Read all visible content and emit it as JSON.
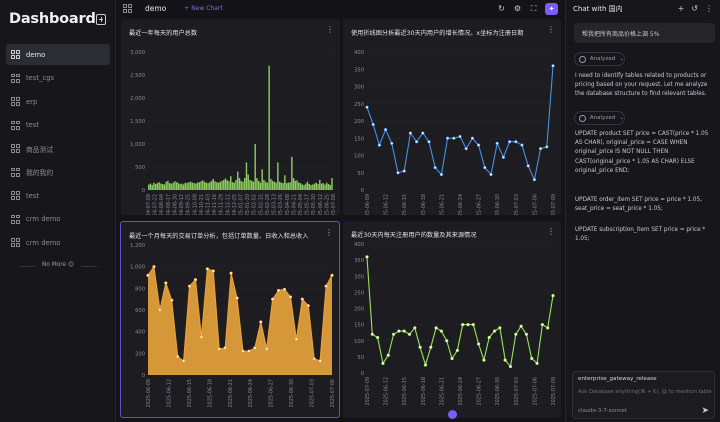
{
  "sidebar": {
    "title": "Dashboard",
    "items": [
      {
        "label": "demo",
        "active": true
      },
      {
        "label": "test_cgs"
      },
      {
        "label": "erp"
      },
      {
        "label": "test"
      },
      {
        "label": "商品测试"
      },
      {
        "label": "我的我的"
      },
      {
        "label": "test"
      },
      {
        "label": "crm demo"
      },
      {
        "label": "crm demo"
      }
    ],
    "no_more": "No More 😊"
  },
  "toolbar": {
    "title": "demo",
    "new_chart_label": "New Chart",
    "icons": [
      "refresh-icon",
      "settings-icon",
      "fullscreen-icon",
      "ai-assistant-icon"
    ]
  },
  "charts": [
    {
      "title": "最近一年每天的用户总数",
      "chart_data": {
        "type": "bar",
        "y_ticks": [
          0,
          500,
          1000,
          1500,
          2000,
          2500,
          3000
        ],
        "ylim": [
          0,
          3000
        ],
        "x_tick_labels": [
          "2024-07-09",
          "2024-07-22",
          "2024-08-04",
          "2024-08-17",
          "2024-08-30",
          "2024-09-12",
          "2024-09-25",
          "2024-10-08",
          "2024-10-21",
          "2024-11-03",
          "2024-11-16",
          "2024-11-29",
          "2024-12-12",
          "2024-12-25",
          "2025-01-07",
          "2025-01-20",
          "2025-02-02",
          "2025-02-15",
          "2025-02-28",
          "2025-03-13",
          "2025-03-26",
          "2025-04-08",
          "2025-04-21",
          "2025-05-04",
          "2025-05-17",
          "2025-05-30",
          "2025-06-12",
          "2025-06-25",
          "2025-07-08"
        ],
        "values": [
          120,
          140,
          110,
          160,
          130,
          150,
          170,
          140,
          130,
          120,
          180,
          200,
          150,
          140,
          160,
          190,
          170,
          150,
          130,
          140,
          120,
          160,
          150,
          170,
          180,
          160,
          150,
          140,
          160,
          170,
          190,
          210,
          180,
          160,
          150,
          170,
          200,
          240,
          190,
          170,
          160,
          180,
          200,
          220,
          250,
          210,
          190,
          300,
          170,
          160,
          220,
          400,
          260,
          200,
          180,
          260,
          600,
          340,
          220,
          200,
          180,
          1000,
          260,
          200,
          160,
          450,
          220,
          180,
          160,
          2700,
          240,
          200,
          180,
          160,
          600,
          180,
          160,
          150,
          320,
          150,
          160,
          170,
          720,
          260,
          200,
          210,
          160,
          150,
          120,
          110,
          140,
          180,
          130,
          110,
          120,
          140,
          160,
          130,
          220,
          140,
          150,
          120,
          160,
          130,
          110,
          260
        ],
        "color": "#8dc95e"
      }
    },
    {
      "title": "使用折线图分析最近30天内用户的增长情况。x坐标为注册日期",
      "chart_data": {
        "type": "line",
        "y_ticks": [
          0,
          50,
          100,
          150,
          200,
          250,
          300,
          350,
          400
        ],
        "ylim": [
          0,
          400
        ],
        "x_tick_labels": [
          "2025-06-09",
          "2025-06-12",
          "2025-06-15",
          "2025-06-18",
          "2025-06-21",
          "2025-06-24",
          "2025-06-27",
          "2025-06-30",
          "2025-07-03",
          "2025-07-06",
          "2025-07-09"
        ],
        "values": [
          240,
          190,
          130,
          175,
          135,
          50,
          55,
          165,
          140,
          165,
          140,
          65,
          45,
          150,
          150,
          155,
          120,
          150,
          130,
          65,
          45,
          135,
          95,
          140,
          140,
          130,
          70,
          30,
          120,
          125,
          360
        ],
        "color": "#4a90e2"
      }
    },
    {
      "title": "最近一个月每天的交易订单分析，包括订单数量、日收入和总收入",
      "chart_data": {
        "type": "area",
        "y_ticks": [
          0,
          200,
          400,
          600,
          800,
          1000,
          1200
        ],
        "ylim": [
          0,
          1200
        ],
        "x_tick_labels": [
          "2025-06-09",
          "2025-06-12",
          "2025-06-15",
          "2025-06-18",
          "2025-06-21",
          "2025-06-24",
          "2025-06-27",
          "2025-06-30",
          "2025-07-03",
          "2025-07-06"
        ],
        "values": [
          920,
          1000,
          600,
          850,
          690,
          170,
          130,
          820,
          880,
          350,
          980,
          960,
          240,
          250,
          940,
          710,
          220,
          220,
          250,
          490,
          240,
          700,
          780,
          790,
          720,
          330,
          700,
          640,
          150,
          130,
          820,
          920
        ],
        "color": "#e6a23c"
      }
    },
    {
      "title": "最近30天内每天注册用户的数量及其来源情况",
      "chart_data": {
        "type": "line",
        "y_ticks": [
          0,
          50,
          100,
          150,
          200,
          250,
          300,
          350,
          400
        ],
        "ylim": [
          0,
          400
        ],
        "x_tick_labels": [
          "2025-07-09",
          "2025-06-12",
          "2025-06-15",
          "2025-06-18",
          "2025-06-21",
          "2025-06-24",
          "2025-06-27",
          "2025-06-30",
          "2025-07-03",
          "2025-07-06",
          "2025-07-09"
        ],
        "values": [
          360,
          120,
          110,
          30,
          55,
          120,
          130,
          130,
          120,
          140,
          80,
          25,
          80,
          140,
          130,
          100,
          45,
          70,
          150,
          150,
          150,
          90,
          40,
          110,
          130,
          140,
          40,
          20,
          120,
          145,
          120,
          45,
          30,
          150,
          140,
          240
        ],
        "color": "#9be35a"
      }
    }
  ],
  "chat": {
    "title": "Chat with 国内",
    "user_message": "帮我把所有商品价格上调 5%",
    "analyzed_label": "Analyzed",
    "reply_1": "I need to identify tables related to products or pricing based on your request. Let me analyze the database structure to find relevant tables.",
    "sql_1": "UPDATE product SET price = CAST(price * 1.05 AS CHAR), original_price = CASE WHEN original_price IS NOT NULL THEN CAST(original_price * 1.05 AS CHAR) ELSE original_price END;",
    "sql_2": "UPDATE order_item SET price = price * 1.05, seat_price = seat_price * 1.05;",
    "sql_3": "UPDATE subscription_item SET price = price * 1.05;",
    "input_chip": "enterprise_gateway_release",
    "input_placeholder": "Ask Database anything(⌘ + K), @ to mention table",
    "model": "claude-3-7-sonnet"
  }
}
